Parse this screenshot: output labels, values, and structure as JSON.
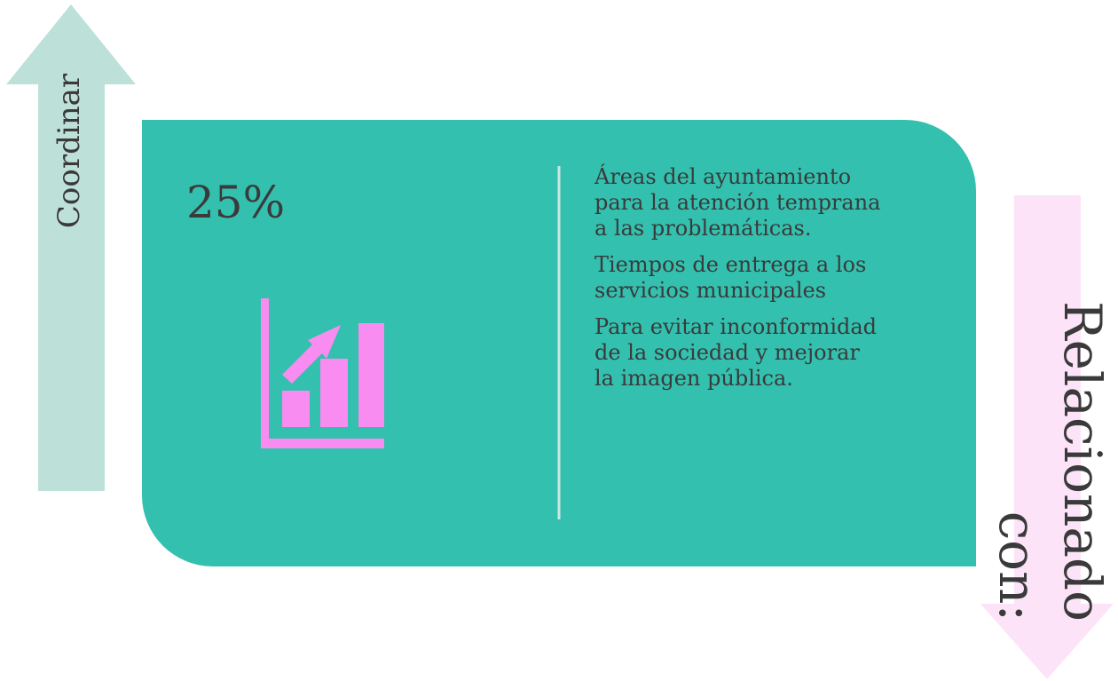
{
  "left_arrow": {
    "label": "Coordinar"
  },
  "card": {
    "percentage": "25%",
    "items": [
      [
        "Áreas del ayuntamiento",
        "para la atención temprana",
        "a las problemáticas."
      ],
      [
        "Tiempos de entrega a los",
        "servicios municipales"
      ],
      [
        "Para evitar inconformidad",
        "de la sociedad y mejorar",
        "la imagen pública."
      ]
    ]
  },
  "right_arrow": {
    "label_lines": [
      "Relacionado",
      "con:"
    ]
  }
}
